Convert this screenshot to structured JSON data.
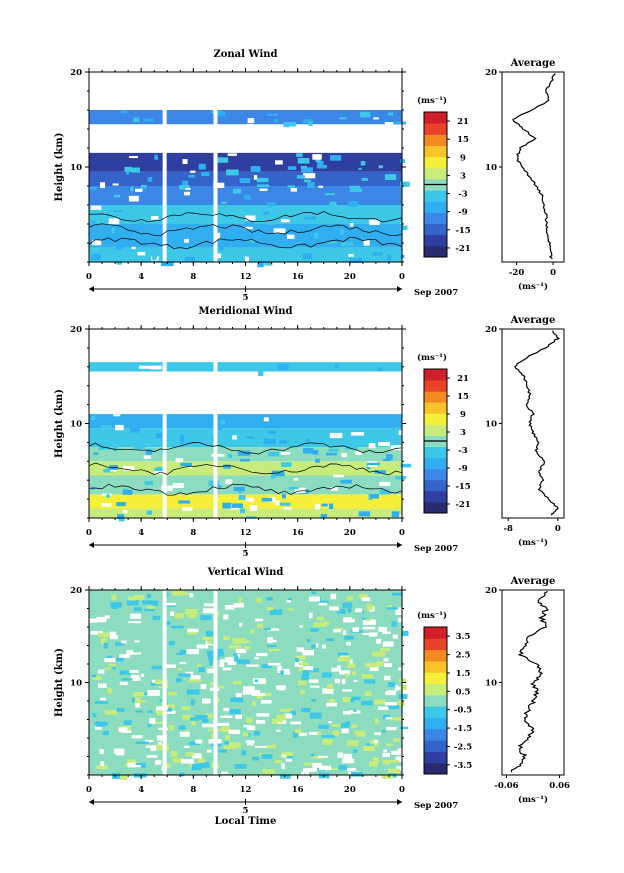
{
  "chart_data": [
    {
      "type": "heatmap",
      "title": "Zonal Wind",
      "ylabel": "Height (km)",
      "ylim": [
        0,
        20
      ],
      "yticks": [
        "20",
        "10"
      ],
      "xlim": [
        0,
        24
      ],
      "xticks": [
        "0",
        "4",
        "8",
        "12",
        "16",
        "20",
        "0"
      ],
      "date_day": "5",
      "date_month": "Sep 2007",
      "colorbar": {
        "unit": "(ms⁻¹)",
        "range": [
          -24,
          24
        ],
        "ticks": [
          "21",
          "15",
          "9",
          "3",
          "-3",
          "-9",
          "-15",
          "-21"
        ],
        "colors": [
          "#2a2b6e",
          "#2f3f9f",
          "#3463c9",
          "#3b86e6",
          "#30aef0",
          "#3ec8e8",
          "#8cdcc0",
          "#c8ec7c",
          "#f6ef3a",
          "#f7c42a",
          "#f48a22",
          "#e8432a",
          "#d11f2a"
        ]
      },
      "field_layers": [
        {
          "h": [
            0.0,
            1.5
          ],
          "color": "#3ec8e8",
          "v": -1
        },
        {
          "h": [
            1.5,
            4.0
          ],
          "color": "#30aef0",
          "v": -4
        },
        {
          "h": [
            4.0,
            6.0
          ],
          "color": "#3ec8e8",
          "v": -2
        },
        {
          "h": [
            6.0,
            8.0
          ],
          "color": "#3b86e6",
          "v": -8
        },
        {
          "h": [
            8.0,
            9.5
          ],
          "color": "#3463c9",
          "v": -14
        },
        {
          "h": [
            9.5,
            11.5
          ],
          "color": "#2f3f9f",
          "v": -19
        },
        {
          "h": [
            11.5,
            14.5
          ],
          "color": "#ffffff",
          "v": null
        },
        {
          "h": [
            14.5,
            16.0
          ],
          "color": "#3b86e6",
          "v": -6
        },
        {
          "h": [
            16.0,
            20.0
          ],
          "color": "#ffffff",
          "v": null
        }
      ],
      "average_profile": {
        "title": "Average",
        "xlabel": "(ms⁻¹)",
        "xticks": [
          "-20",
          "0"
        ],
        "xlim": [
          -28,
          6
        ],
        "ylim": [
          0,
          20
        ],
        "yticks": [
          "20",
          "10"
        ],
        "height_km": [
          0.3,
          1,
          2,
          3,
          4,
          5,
          6,
          7,
          8,
          9,
          10,
          11,
          12,
          13,
          14,
          15,
          16,
          17,
          18,
          19,
          20
        ],
        "wind": [
          -1,
          -1.5,
          -2,
          -3,
          -3.5,
          -4,
          -5,
          -6,
          -9,
          -13,
          -17,
          -20,
          -18,
          -10,
          -16,
          -22,
          -12,
          -2,
          -4,
          -1,
          1
        ]
      }
    },
    {
      "type": "heatmap",
      "title": "Meridional Wind",
      "ylabel": "Height (km)",
      "ylim": [
        0,
        20
      ],
      "yticks": [
        "20",
        "10"
      ],
      "xlim": [
        0,
        24
      ],
      "xticks": [
        "0",
        "4",
        "8",
        "12",
        "16",
        "20",
        "0"
      ],
      "date_day": "5",
      "date_month": "Sep 2007",
      "colorbar": {
        "unit": "(ms⁻¹)",
        "range": [
          -24,
          24
        ],
        "ticks": [
          "21",
          "15",
          "9",
          "3",
          "-3",
          "-9",
          "-15",
          "-21"
        ],
        "colors": [
          "#2a2b6e",
          "#2f3f9f",
          "#3463c9",
          "#3b86e6",
          "#30aef0",
          "#3ec8e8",
          "#8cdcc0",
          "#c8ec7c",
          "#f6ef3a",
          "#f7c42a",
          "#f48a22",
          "#e8432a",
          "#d11f2a"
        ]
      },
      "field_layers": [
        {
          "h": [
            0.0,
            1.0
          ],
          "color": "#c8ec7c",
          "v": 4
        },
        {
          "h": [
            1.0,
            2.5
          ],
          "color": "#f6ef3a",
          "v": 6
        },
        {
          "h": [
            2.5,
            4.5
          ],
          "color": "#8cdcc0",
          "v": 2
        },
        {
          "h": [
            4.5,
            6.0
          ],
          "color": "#c8ec7c",
          "v": 4
        },
        {
          "h": [
            6.0,
            7.5
          ],
          "color": "#8cdcc0",
          "v": 1
        },
        {
          "h": [
            7.5,
            9.5
          ],
          "color": "#3ec8e8",
          "v": -2
        },
        {
          "h": [
            9.5,
            11.0
          ],
          "color": "#30aef0",
          "v": -4
        },
        {
          "h": [
            11.0,
            15.5
          ],
          "color": "#ffffff",
          "v": null
        },
        {
          "h": [
            15.5,
            16.5
          ],
          "color": "#3ec8e8",
          "v": -1
        },
        {
          "h": [
            16.5,
            20.0
          ],
          "color": "#ffffff",
          "v": null
        }
      ],
      "average_profile": {
        "title": "Average",
        "xlabel": "(ms⁻¹)",
        "xticks": [
          "-8",
          "0"
        ],
        "xlim": [
          -9,
          1
        ],
        "ylim": [
          0,
          20
        ],
        "yticks": [
          "20",
          "10"
        ],
        "height_km": [
          0.3,
          1,
          2,
          3,
          4,
          5,
          6,
          7,
          8,
          9,
          10,
          11,
          12,
          13,
          14,
          15,
          16,
          17,
          18,
          19,
          20
        ],
        "wind": [
          -1,
          0,
          -1.5,
          -3,
          -2.5,
          -3,
          -2,
          -3.5,
          -3,
          -4,
          -4.5,
          -4,
          -5,
          -4.5,
          -5,
          -5.5,
          -7,
          -5,
          -2,
          0,
          -1
        ]
      }
    },
    {
      "type": "heatmap",
      "title": "Vertical Wind",
      "ylabel": "Height (km)",
      "xlabel": "Local Time",
      "ylim": [
        0,
        20
      ],
      "yticks": [
        "20",
        "10"
      ],
      "xlim": [
        0,
        24
      ],
      "xticks": [
        "0",
        "4",
        "8",
        "12",
        "16",
        "20",
        "0"
      ],
      "date_day": "5",
      "date_month": "Sep 2007",
      "colorbar": {
        "unit": "(ms⁻¹)",
        "range": [
          -4,
          4
        ],
        "ticks": [
          "3.5",
          "2.5",
          "1.5",
          "0.5",
          "-0.5",
          "-1.5",
          "-2.5",
          "-3.5"
        ],
        "colors": [
          "#2a2b6e",
          "#2f3f9f",
          "#3463c9",
          "#3b86e6",
          "#30aef0",
          "#3ec8e8",
          "#8cdcc0",
          "#c8ec7c",
          "#f6ef3a",
          "#f7c42a",
          "#f48a22",
          "#e8432a",
          "#d11f2a"
        ]
      },
      "field_layers": [
        {
          "h": [
            0.0,
            20.0
          ],
          "color": "#8cdcc0",
          "v": 0
        }
      ],
      "average_profile": {
        "title": "Average",
        "xlabel": "(ms⁻¹)",
        "xticks": [
          "-0.06",
          "0.06"
        ],
        "xlim": [
          -0.07,
          0.07
        ],
        "ylim": [
          0,
          20
        ],
        "yticks": [
          "20",
          "10"
        ],
        "height_km": [
          0.3,
          1,
          2,
          3,
          4,
          5,
          6,
          7,
          8,
          9,
          10,
          11,
          12,
          13,
          14,
          15,
          16,
          17,
          18,
          19,
          20
        ],
        "wind": [
          -0.05,
          -0.03,
          -0.02,
          -0.03,
          -0.01,
          0.0,
          -0.02,
          -0.01,
          0.0,
          0.01,
          0.0,
          0.02,
          0.01,
          -0.03,
          -0.02,
          -0.01,
          0.03,
          0.02,
          0.03,
          0.01,
          0.04
        ]
      }
    }
  ]
}
